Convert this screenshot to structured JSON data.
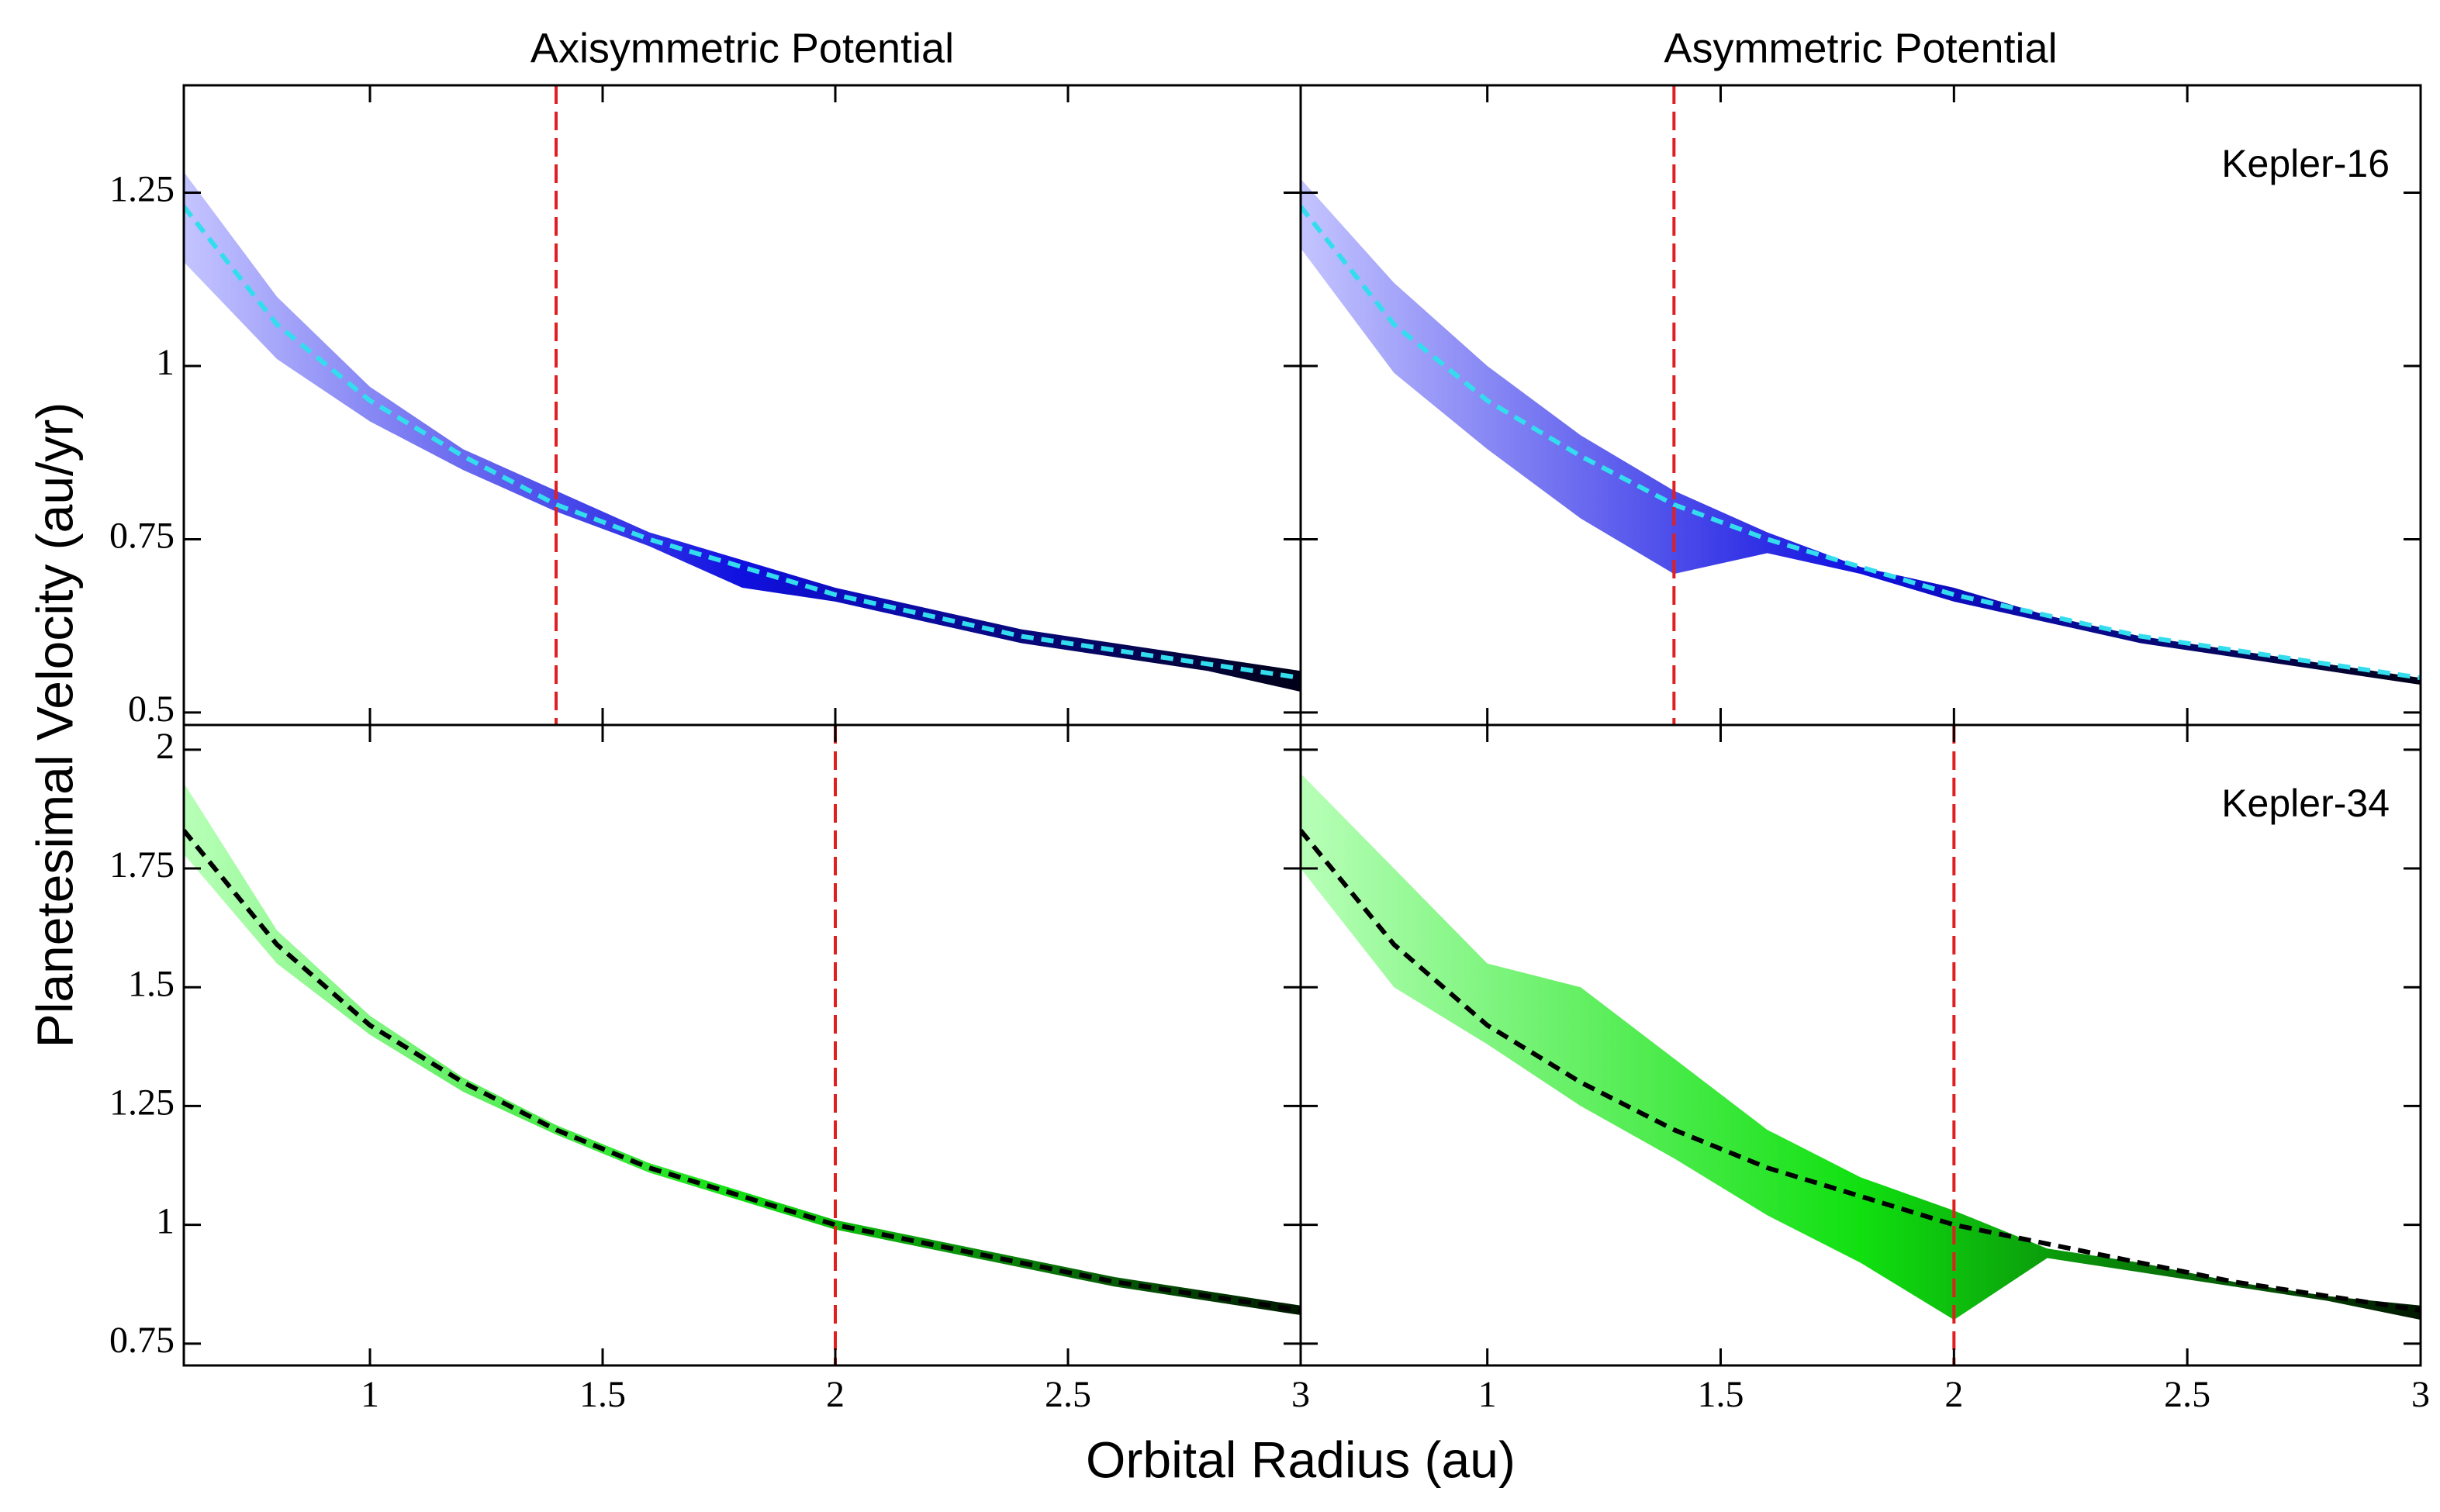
{
  "figure": {
    "xlabel": "Orbital Radius (au)",
    "ylabel": "Planetesimal Velocity (au/yr)"
  },
  "chart_data": [
    {
      "type": "line",
      "title": "Axisymmetric Potential",
      "xlim": [
        0.6,
        3
      ],
      "ylim": [
        0.482,
        1.405
      ],
      "xticks": [
        1,
        1.5,
        2,
        2.5,
        3
      ],
      "yticks": [
        0.5,
        0.75,
        1,
        1.25
      ],
      "show_xticklabels": false,
      "show_yticklabels": true,
      "x": [
        0.6,
        0.8,
        1.0,
        1.2,
        1.4,
        1.6,
        1.8,
        2.0,
        2.2,
        2.4,
        2.6,
        2.8,
        3.0
      ],
      "band": {
        "upper": [
          1.28,
          1.1,
          0.97,
          0.88,
          0.82,
          0.76,
          0.72,
          0.68,
          0.65,
          0.62,
          0.6,
          0.58,
          0.56
        ],
        "lower": [
          1.15,
          1.01,
          0.92,
          0.85,
          0.79,
          0.74,
          0.68,
          0.66,
          0.63,
          0.6,
          0.58,
          0.56,
          0.53
        ],
        "colors": [
          "#c4c4ff",
          "#1010e0",
          "#000018"
        ]
      },
      "series": [
        {
          "color": "#33ddee",
          "values": [
            1.23,
            1.06,
            0.95,
            0.87,
            0.8,
            0.75,
            0.71,
            0.67,
            0.64,
            0.61,
            0.59,
            0.57,
            0.55
          ]
        }
      ],
      "vline": {
        "value": 1.4,
        "color": "#e02020"
      }
    },
    {
      "type": "line",
      "title": "Asymmetric Potential",
      "annotation": "Kepler-16",
      "xlim": [
        0.6,
        3
      ],
      "ylim": [
        0.482,
        1.405
      ],
      "xticks": [
        1,
        1.5,
        2,
        2.5,
        3
      ],
      "yticks": [
        0.5,
        0.75,
        1,
        1.25
      ],
      "show_xticklabels": false,
      "show_yticklabels": false,
      "x": [
        0.6,
        0.8,
        1.0,
        1.2,
        1.4,
        1.6,
        1.8,
        2.0,
        2.2,
        2.4,
        2.6,
        2.8,
        3.0
      ],
      "band": {
        "upper": [
          1.27,
          1.12,
          1.0,
          0.9,
          0.82,
          0.76,
          0.71,
          0.68,
          0.64,
          0.61,
          0.59,
          0.57,
          0.55
        ],
        "lower": [
          1.17,
          0.99,
          0.88,
          0.78,
          0.7,
          0.73,
          0.7,
          0.66,
          0.63,
          0.6,
          0.58,
          0.56,
          0.54
        ],
        "colors": [
          "#c4c4ff",
          "#1010e0",
          "#000018"
        ]
      },
      "series": [
        {
          "color": "#33ddee",
          "values": [
            1.23,
            1.06,
            0.95,
            0.87,
            0.8,
            0.75,
            0.71,
            0.67,
            0.64,
            0.61,
            0.59,
            0.57,
            0.55
          ]
        }
      ],
      "vline": {
        "value": 1.4,
        "color": "#e02020"
      }
    },
    {
      "type": "line",
      "xlim": [
        0.6,
        3
      ],
      "ylim": [
        0.704,
        2.052
      ],
      "xticks": [
        1,
        1.5,
        2,
        2.5,
        3
      ],
      "yticks": [
        0.75,
        1,
        1.25,
        1.5,
        1.75,
        2
      ],
      "show_xticklabels": true,
      "show_yticklabels": true,
      "x": [
        0.6,
        0.8,
        1.0,
        1.2,
        1.4,
        1.6,
        1.8,
        2.0,
        2.2,
        2.4,
        2.6,
        2.8,
        3.0
      ],
      "band": {
        "upper": [
          1.93,
          1.62,
          1.44,
          1.31,
          1.21,
          1.13,
          1.07,
          1.01,
          0.97,
          0.93,
          0.89,
          0.86,
          0.83
        ],
        "lower": [
          1.78,
          1.55,
          1.4,
          1.28,
          1.19,
          1.11,
          1.05,
          0.99,
          0.95,
          0.91,
          0.87,
          0.84,
          0.81
        ],
        "colors": [
          "#b8ffb8",
          "#10e010",
          "#001800"
        ]
      },
      "series": [
        {
          "color": "#000000",
          "values": [
            1.83,
            1.59,
            1.42,
            1.3,
            1.2,
            1.12,
            1.06,
            1.0,
            0.96,
            0.92,
            0.88,
            0.85,
            0.82
          ]
        }
      ],
      "vline": {
        "value": 2,
        "color": "#e02020"
      }
    },
    {
      "type": "line",
      "annotation": "Kepler-34",
      "xlim": [
        0.6,
        3
      ],
      "ylim": [
        0.704,
        2.052
      ],
      "xticks": [
        1,
        1.5,
        2,
        2.5,
        3
      ],
      "yticks": [
        0.75,
        1,
        1.25,
        1.5,
        1.75,
        2
      ],
      "show_xticklabels": true,
      "show_yticklabels": false,
      "x": [
        0.6,
        0.8,
        1.0,
        1.2,
        1.4,
        1.6,
        1.8,
        2.0,
        2.2,
        2.4,
        2.6,
        2.8,
        3.0
      ],
      "band": {
        "upper": [
          1.95,
          1.75,
          1.55,
          1.5,
          1.35,
          1.2,
          1.1,
          1.03,
          0.95,
          0.92,
          0.88,
          0.85,
          0.83
        ],
        "lower": [
          1.75,
          1.5,
          1.38,
          1.25,
          1.14,
          1.02,
          0.92,
          0.8,
          0.93,
          0.9,
          0.87,
          0.84,
          0.8
        ],
        "colors": [
          "#b8ffb8",
          "#10e010",
          "#001800"
        ]
      },
      "series": [
        {
          "color": "#000000",
          "values": [
            1.83,
            1.59,
            1.42,
            1.3,
            1.2,
            1.12,
            1.06,
            1.0,
            0.96,
            0.92,
            0.88,
            0.85,
            0.82
          ]
        }
      ],
      "vline": {
        "value": 2,
        "color": "#e02020"
      }
    }
  ]
}
